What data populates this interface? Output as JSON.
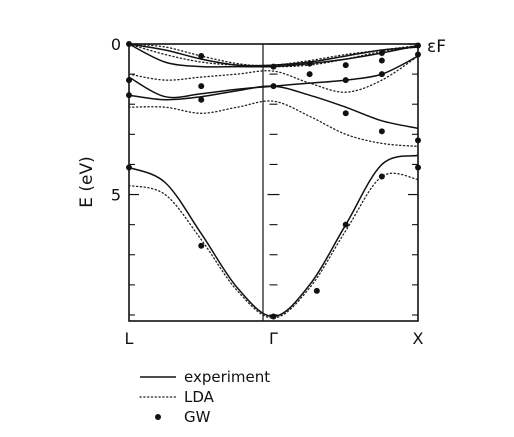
{
  "chart_data": {
    "type": "line",
    "ylabel": "E (eV)",
    "xticks": [
      {
        "label": "L",
        "k": 0
      },
      {
        "label": "Γ",
        "k": 1
      },
      {
        "label": "X",
        "k": 2
      }
    ],
    "ylim": [
      0,
      9.2
    ],
    "y_inverted": true,
    "yticks_labeled": [
      {
        "label": "0",
        "value": 0
      },
      {
        "label": "5",
        "value": 5
      }
    ],
    "yticks_minor": [
      1,
      2,
      3,
      4,
      6,
      7,
      8,
      9
    ],
    "fermi_label": "εF",
    "grid": false,
    "legend": {
      "placement": "bottom-left",
      "entries": [
        {
          "label": "experiment",
          "style": "solid"
        },
        {
          "label": "LDA",
          "style": "dotted"
        },
        {
          "label": "GW",
          "style": "marker"
        }
      ]
    },
    "experiment_bands": [
      {
        "k": [
          0,
          0.25,
          0.5,
          0.75,
          1,
          1.25,
          1.5,
          1.75,
          2
        ],
        "E": [
          4.1,
          4.6,
          6.3,
          8.1,
          9.05,
          8.0,
          6.0,
          4.0,
          3.7
        ]
      },
      {
        "k": [
          0,
          0.25,
          0.5,
          0.75,
          1,
          1.25,
          1.5,
          1.75,
          2
        ],
        "E": [
          1.7,
          1.85,
          1.75,
          1.55,
          1.4,
          1.7,
          2.1,
          2.55,
          2.8
        ]
      },
      {
        "k": [
          0,
          0.25,
          0.5,
          0.75,
          1,
          1.25,
          1.5,
          1.75,
          2
        ],
        "E": [
          1.1,
          1.75,
          1.65,
          1.5,
          1.4,
          1.3,
          1.2,
          1.0,
          0.4
        ]
      },
      {
        "k": [
          0,
          0.25,
          0.5,
          0.75,
          1,
          1.25,
          1.5,
          1.75,
          2
        ],
        "E": [
          0,
          0.6,
          0.75,
          0.75,
          0.75,
          0.65,
          0.5,
          0.3,
          0.05
        ]
      },
      {
        "k": [
          0,
          0.25,
          0.5,
          0.75,
          1,
          1.25,
          1.5,
          1.75,
          2
        ],
        "E": [
          0,
          0.2,
          0.5,
          0.7,
          0.7,
          0.6,
          0.4,
          0.2,
          0.1
        ]
      }
    ],
    "lda_bands": [
      {
        "k": [
          0,
          0.25,
          0.5,
          0.75,
          1,
          1.25,
          1.5,
          1.75,
          2
        ],
        "E": [
          4.7,
          5.0,
          6.5,
          8.2,
          9.1,
          8.1,
          6.2,
          4.4,
          4.5
        ]
      },
      {
        "k": [
          0,
          0.25,
          0.5,
          0.75,
          1,
          1.25,
          1.5,
          1.75,
          2
        ],
        "E": [
          2.1,
          2.1,
          2.3,
          2.1,
          1.9,
          2.4,
          3.0,
          3.3,
          3.4
        ]
      },
      {
        "k": [
          0,
          0.25,
          0.5,
          0.75,
          1,
          1.25,
          1.5,
          1.75,
          2
        ],
        "E": [
          1.0,
          1.2,
          1.1,
          1.0,
          0.9,
          1.3,
          1.6,
          1.2,
          0.4
        ]
      },
      {
        "k": [
          0,
          0.25,
          0.5,
          0.75,
          1,
          1.25,
          1.5,
          1.75,
          2
        ],
        "E": [
          0,
          0.35,
          0.6,
          0.7,
          0.7,
          0.55,
          0.35,
          0.2,
          0.05
        ]
      },
      {
        "k": [
          0,
          0.25,
          0.5,
          0.75,
          1,
          1.25,
          1.5,
          1.75,
          2
        ],
        "E": [
          0,
          0.1,
          0.4,
          0.65,
          0.75,
          0.7,
          0.5,
          0.25,
          0.1
        ]
      }
    ],
    "gw_points": [
      {
        "k": 0,
        "E": 0.0
      },
      {
        "k": 0,
        "E": 1.2
      },
      {
        "k": 0,
        "E": 1.7
      },
      {
        "k": 0,
        "E": 4.1
      },
      {
        "k": 0.5,
        "E": 0.4
      },
      {
        "k": 0.5,
        "E": 1.4
      },
      {
        "k": 0.5,
        "E": 1.85
      },
      {
        "k": 0.5,
        "E": 6.7
      },
      {
        "k": 1,
        "E": 0.75
      },
      {
        "k": 1,
        "E": 1.4
      },
      {
        "k": 1,
        "E": 9.05
      },
      {
        "k": 1.25,
        "E": 0.65
      },
      {
        "k": 1.25,
        "E": 1.0
      },
      {
        "k": 1.3,
        "E": 8.2
      },
      {
        "k": 1.5,
        "E": 0.7
      },
      {
        "k": 1.5,
        "E": 1.2
      },
      {
        "k": 1.5,
        "E": 2.3
      },
      {
        "k": 1.5,
        "E": 6.0
      },
      {
        "k": 1.75,
        "E": 0.3
      },
      {
        "k": 1.75,
        "E": 0.55
      },
      {
        "k": 1.75,
        "E": 1.0
      },
      {
        "k": 1.75,
        "E": 2.9
      },
      {
        "k": 1.75,
        "E": 4.4
      },
      {
        "k": 2,
        "E": 0.05
      },
      {
        "k": 2,
        "E": 0.35
      },
      {
        "k": 2,
        "E": 3.2
      },
      {
        "k": 2,
        "E": 4.1
      }
    ]
  }
}
